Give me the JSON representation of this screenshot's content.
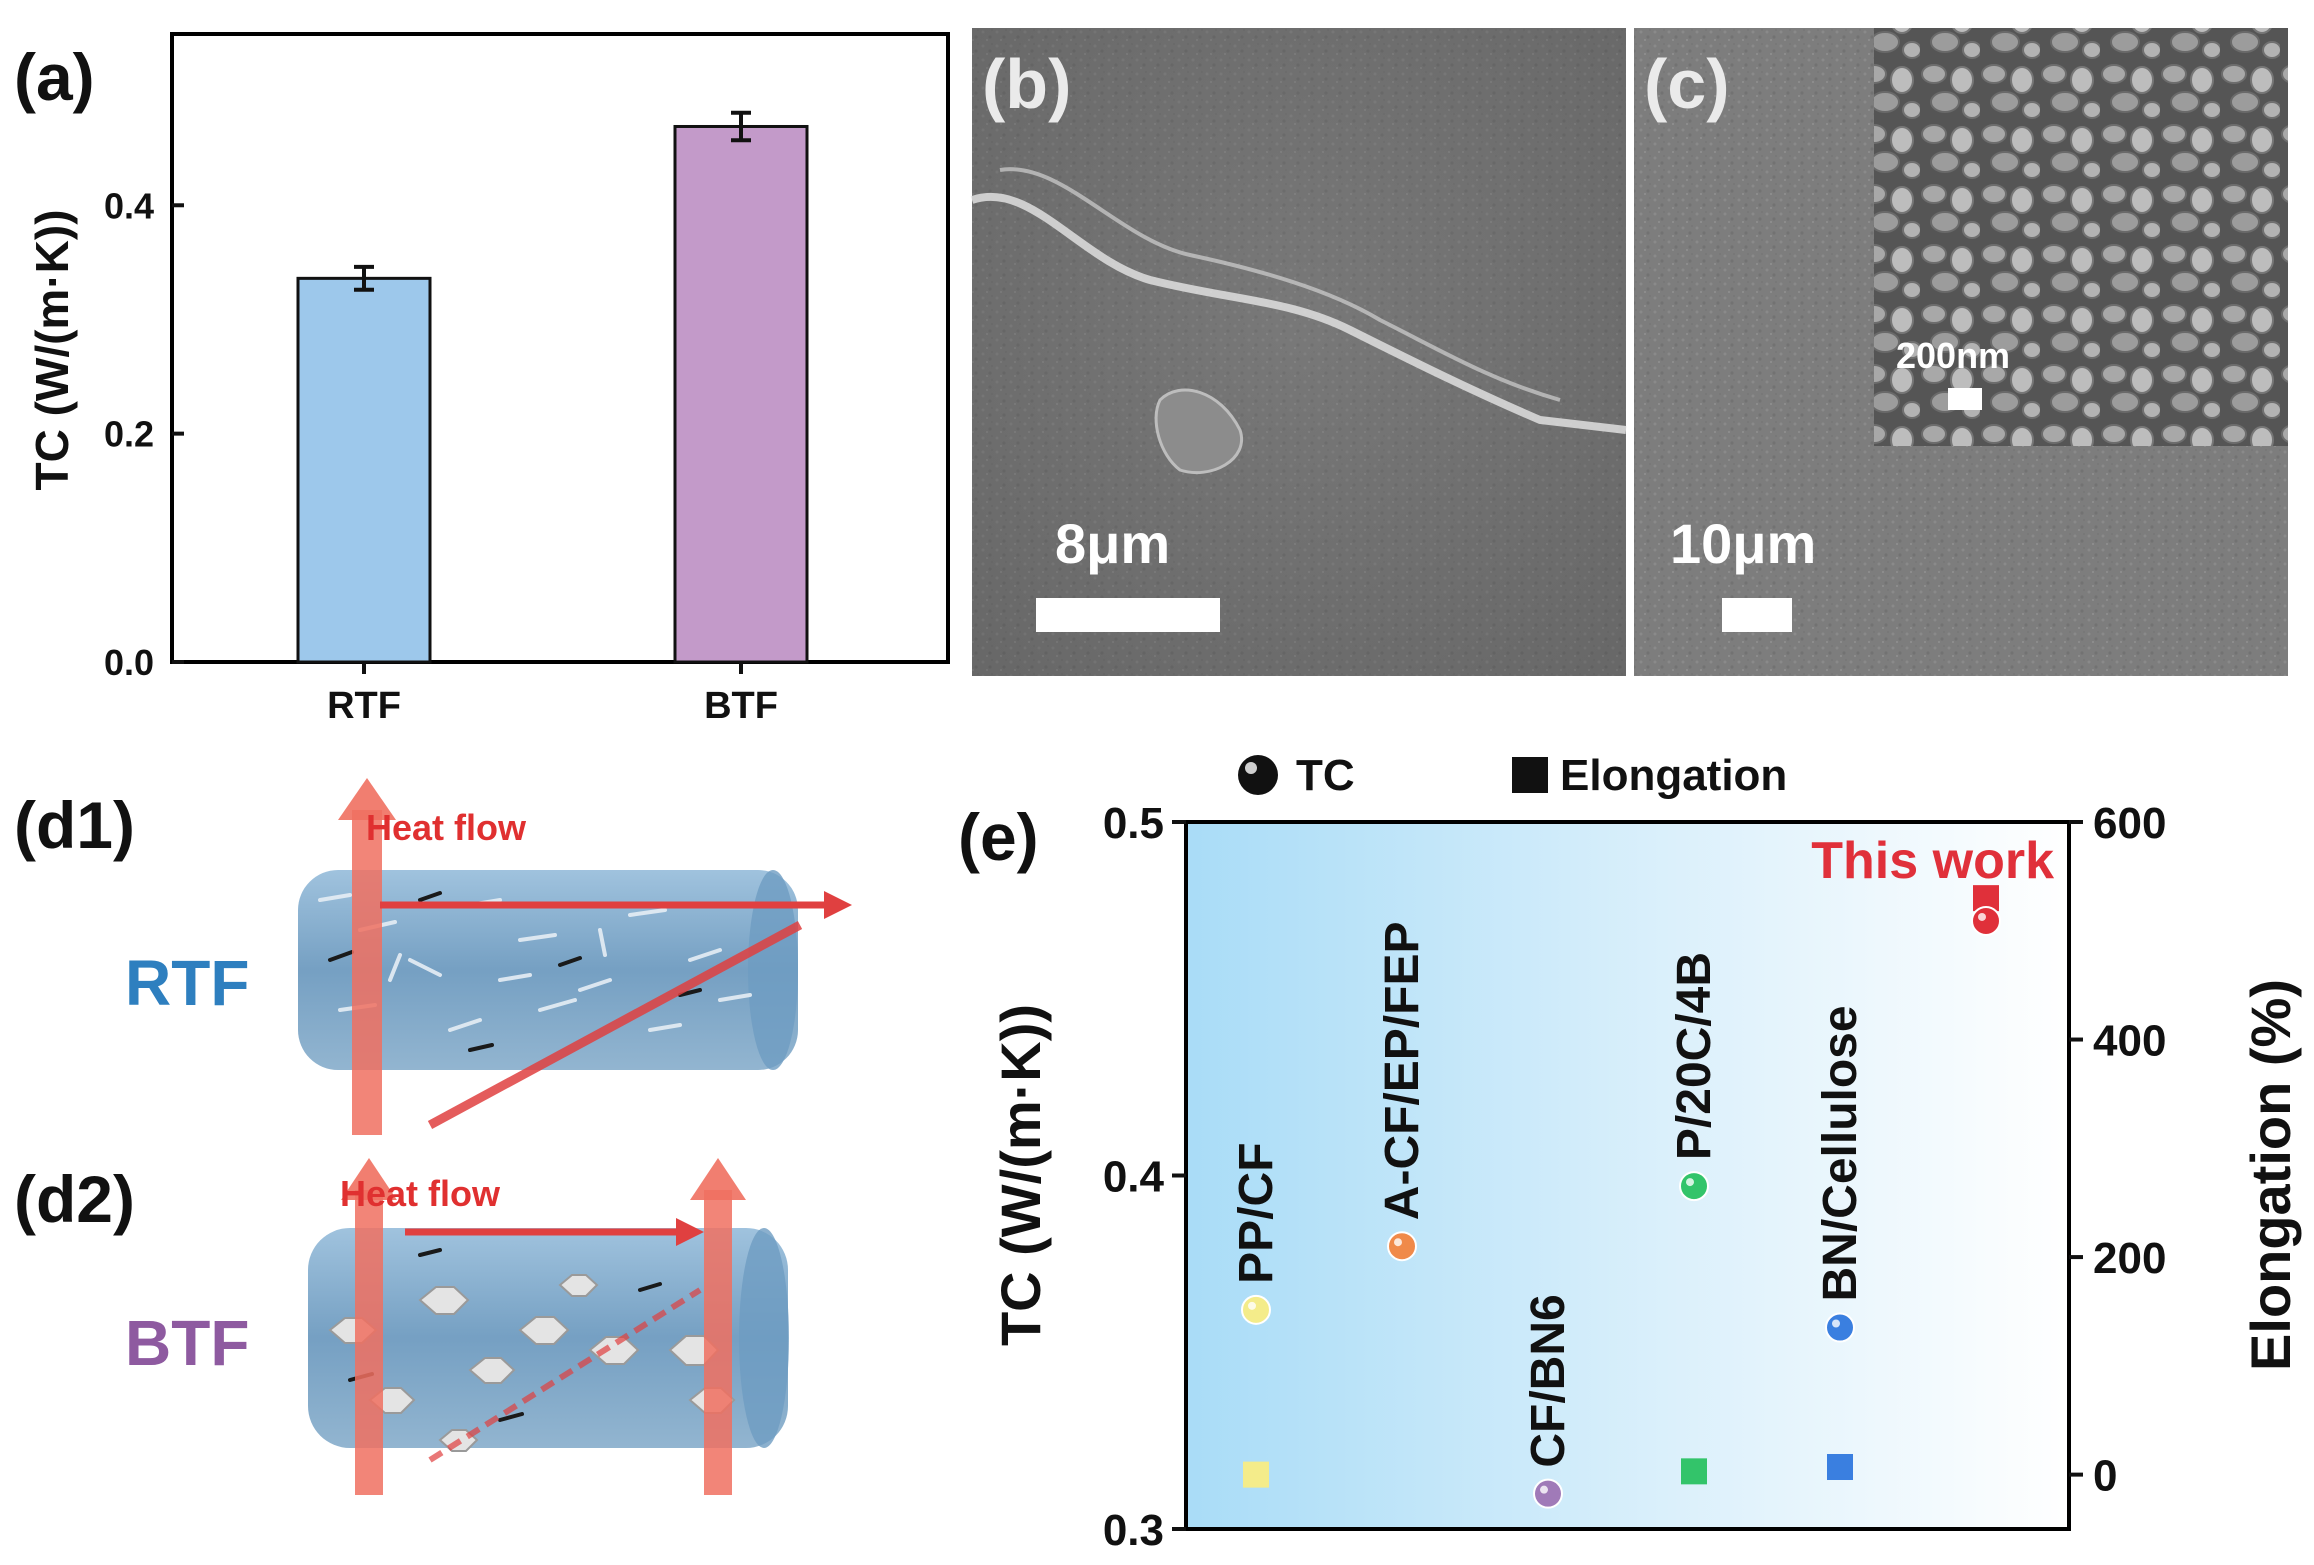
{
  "panels": {
    "a": {
      "label": "(a)"
    },
    "b": {
      "label": "(b)",
      "scale_bar": "8μm"
    },
    "c": {
      "label": "(c)",
      "scale_bar": "10μm",
      "inset_scale_bar": "200nm"
    },
    "d1": {
      "label": "(d1)",
      "heat_flow": "Heat flow",
      "name": "RTF"
    },
    "d2": {
      "label": "(d2)",
      "heat_flow": "Heat flow",
      "name": "BTF"
    },
    "e": {
      "label": "(e)"
    }
  },
  "colors": {
    "rtf_bar": "#9dc8eb",
    "btf_bar": "#c39ac9",
    "rtf_text": "#2e7fbf",
    "btf_text": "#8e5aa0",
    "this_work": "#e0303a",
    "heat_arrow": "#f07060"
  },
  "chart_data": [
    {
      "type": "bar",
      "categories": [
        "RTF",
        "BTF"
      ],
      "values": [
        0.336,
        0.469
      ],
      "errors": [
        0.01,
        0.012
      ],
      "ylabel": "TC (W/(m·K))",
      "ylim": [
        0,
        0.55
      ],
      "yticks": [
        0.0,
        0.2,
        0.4
      ],
      "ytick_labels": [
        "0.0",
        "0.2",
        "0.4"
      ]
    },
    {
      "type": "scatter",
      "legend": [
        "TC",
        "Elongation"
      ],
      "legend_placement": "top",
      "ylabel": "TC (W/(m·K))",
      "ylabel_right": "Elongation (%)",
      "ylim": [
        0.3,
        0.5
      ],
      "ylim_right": [
        -50,
        600
      ],
      "yticks": [
        0.3,
        0.4,
        0.5
      ],
      "ytick_labels": [
        "0.3",
        "0.4",
        "0.5"
      ],
      "yticks_right": [
        0,
        200,
        400,
        600
      ],
      "ytick_labels_right": [
        "0",
        "200",
        "400",
        "600"
      ],
      "points": [
        {
          "label": "PP/CF",
          "x": 1,
          "tc": 0.362,
          "elongation": 0,
          "color": "#f4ec8a"
        },
        {
          "label": "A-CF/EP/FEP",
          "x": 2,
          "tc": 0.38,
          "elongation": null,
          "color": "#f08a4a"
        },
        {
          "label": "CF/BN6",
          "x": 3,
          "tc": 0.31,
          "elongation": null,
          "color": "#a07ab8"
        },
        {
          "label": "P/20C/4B",
          "x": 4,
          "tc": 0.397,
          "elongation": 3,
          "color": "#33c46a"
        },
        {
          "label": "BN/Cellulose",
          "x": 5,
          "tc": 0.357,
          "elongation": 7,
          "color": "#3a7fe0"
        },
        {
          "label": "This work",
          "x": 6,
          "tc": 0.472,
          "elongation": 530,
          "color": "#e0303a"
        }
      ]
    }
  ]
}
